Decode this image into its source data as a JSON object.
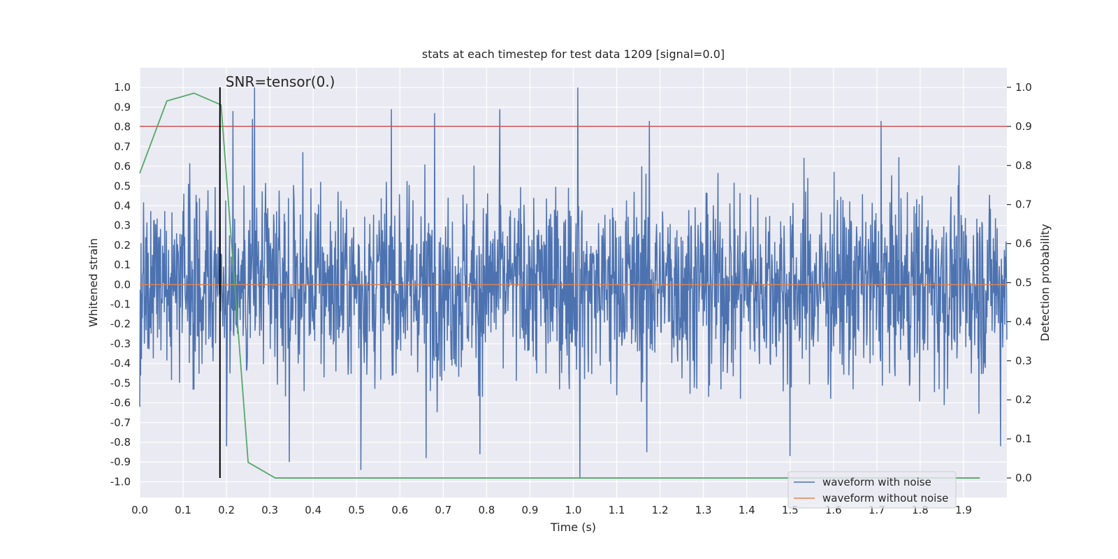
{
  "chart_data": {
    "type": "line",
    "title": "stats at each timestep for test data 1209 [signal=0.0]",
    "xlabel": "Time (s)",
    "ylabel": "Whitened strain",
    "y2label": "Detection probability",
    "xlim": [
      0.0,
      2.0
    ],
    "ylim": [
      -1.08,
      1.1
    ],
    "y2lim": [
      -0.05,
      1.05
    ],
    "xticks": [
      "0.0",
      "0.1",
      "0.2",
      "0.3",
      "0.4",
      "0.5",
      "0.6",
      "0.7",
      "0.8",
      "0.9",
      "1.0",
      "1.1",
      "1.2",
      "1.3",
      "1.4",
      "1.5",
      "1.6",
      "1.7",
      "1.8",
      "1.9"
    ],
    "yticks": [
      "1.0",
      "0.9",
      "0.8",
      "0.7",
      "0.6",
      "0.5",
      "0.4",
      "0.3",
      "0.2",
      "0.1",
      "0.0",
      "-0.1",
      "-0.2",
      "-0.3",
      "-0.4",
      "-0.5",
      "-0.6",
      "-0.7",
      "-0.8",
      "-0.9",
      "-1.0"
    ],
    "y2ticks": [
      "1.0",
      "0.9",
      "0.8",
      "0.7",
      "0.6",
      "0.5",
      "0.4",
      "0.3",
      "0.2",
      "0.1",
      "0.0"
    ],
    "annotation": {
      "text": "SNR=tensor(0.)",
      "x": 0.185
    },
    "threshold": {
      "value": 0.9,
      "axis": "y2",
      "color": "#c44e52"
    },
    "marker_line": {
      "x": 0.185,
      "y_from": 0.0,
      "y_to": 1.0,
      "axis": "y2",
      "color": "#000000"
    },
    "series": [
      {
        "name": "waveform with noise",
        "color": "#4c72b0",
        "axis": "y",
        "n_samples": 2048,
        "t_start": 0.0,
        "t_end": 2.0,
        "amplitude_std": 0.33,
        "peaks": [
          {
            "t": 0.185,
            "v": 0.87
          },
          {
            "t": 0.215,
            "v": 0.88
          },
          {
            "t": 0.26,
            "v": 0.84
          },
          {
            "t": 0.265,
            "v": 1.0
          },
          {
            "t": 0.345,
            "v": 0.87
          },
          {
            "t": 0.58,
            "v": 0.89
          },
          {
            "t": 0.68,
            "v": 0.87
          },
          {
            "t": 0.83,
            "v": 0.89
          },
          {
            "t": 1.01,
            "v": 1.0
          },
          {
            "t": 1.175,
            "v": 0.83
          },
          {
            "t": 1.71,
            "v": 0.83
          },
          {
            "t": 1.985,
            "v": 0.99
          },
          {
            "t": 0.0,
            "v": -0.62
          },
          {
            "t": 0.2,
            "v": -0.82
          },
          {
            "t": 0.345,
            "v": -0.9
          },
          {
            "t": 0.51,
            "v": -0.94
          },
          {
            "t": 0.66,
            "v": -0.88
          },
          {
            "t": 0.785,
            "v": -0.86
          },
          {
            "t": 1.015,
            "v": -0.98
          },
          {
            "t": 1.17,
            "v": -0.85
          },
          {
            "t": 1.5,
            "v": -0.87
          },
          {
            "t": 1.985,
            "v": -0.82
          }
        ]
      },
      {
        "name": "waveform without noise",
        "color": "#dd8452",
        "axis": "y",
        "x": [
          0.0,
          2.0
        ],
        "y": [
          0.0,
          0.0
        ]
      },
      {
        "name": "detection probability",
        "color": "#55a868",
        "axis": "y2",
        "x": [
          0.0,
          0.0625,
          0.125,
          0.1875,
          0.25,
          0.3125,
          0.375,
          0.4375,
          0.5,
          0.5625,
          0.625,
          0.6875,
          0.75,
          0.8125,
          0.875,
          0.9375,
          1.0,
          1.0625,
          1.125,
          1.1875,
          1.25,
          1.3125,
          1.375,
          1.4375,
          1.5,
          1.5625,
          1.625,
          1.6875,
          1.75,
          1.8125,
          1.875,
          1.9375
        ],
        "y": [
          0.78,
          0.965,
          0.985,
          0.955,
          0.04,
          0.0,
          0.0,
          0.0,
          0.0,
          0.0,
          0.0,
          0.0,
          0.0,
          0.0,
          0.0,
          0.0,
          0.0,
          0.0,
          0.0,
          0.0,
          0.0,
          0.0,
          0.0,
          0.0,
          0.0,
          0.0,
          0.0,
          0.0,
          0.0,
          0.0,
          0.0,
          0.0
        ]
      }
    ],
    "legend": {
      "position": "lower-right",
      "entries": [
        {
          "label": "waveform with noise",
          "color": "#4c72b0"
        },
        {
          "label": "waveform without noise",
          "color": "#dd8452"
        }
      ]
    }
  }
}
